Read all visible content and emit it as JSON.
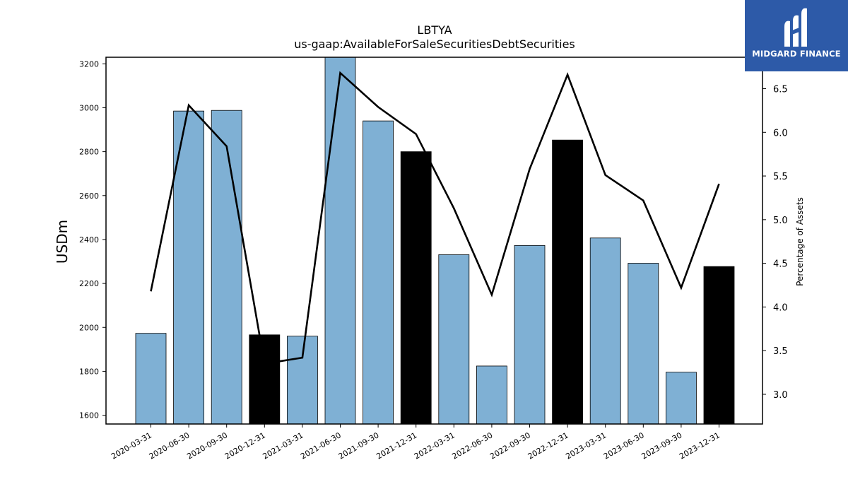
{
  "chart_data": {
    "type": "bar+line",
    "title": "LBTYA",
    "subtitle": "us-gaap:AvailableForSaleSecuritiesDebtSecurities",
    "ylabel": "USDm",
    "ylabel_right": "Percentage of Assets",
    "categories": [
      "2020-03-31",
      "2020-06-30",
      "2020-09-30",
      "2020-12-31",
      "2021-03-31",
      "2021-06-30",
      "2021-09-30",
      "2021-12-31",
      "2022-03-31",
      "2022-06-30",
      "2022-09-30",
      "2022-12-31",
      "2023-03-31",
      "2023-06-30",
      "2023-09-30",
      "2023-12-31"
    ],
    "series": [
      {
        "type": "bar",
        "axis": "left",
        "values": [
          1973,
          2985,
          2988,
          1966,
          1960,
          3230,
          2940,
          2800,
          2331,
          1824,
          2373,
          2853,
          2407,
          2292,
          1796,
          2277
        ],
        "colors": [
          "#7fb0d4",
          "#7fb0d4",
          "#7fb0d4",
          "#000000",
          "#7fb0d4",
          "#7fb0d4",
          "#7fb0d4",
          "#000000",
          "#7fb0d4",
          "#7fb0d4",
          "#7fb0d4",
          "#000000",
          "#7fb0d4",
          "#7fb0d4",
          "#7fb0d4",
          "#000000"
        ]
      },
      {
        "type": "line",
        "axis": "right",
        "color": "#000000",
        "values": [
          4.18,
          6.31,
          5.84,
          3.35,
          3.42,
          6.68,
          6.29,
          5.98,
          5.13,
          4.14,
          5.58,
          6.66,
          5.51,
          5.22,
          4.22,
          5.41
        ]
      }
    ],
    "ylim": [
      1560,
      3230
    ],
    "yticks": [
      1600,
      1800,
      2000,
      2200,
      2400,
      2600,
      2800,
      3000,
      3200
    ],
    "ylim_right": [
      2.66,
      6.86
    ],
    "yticks_right": [
      "3.0",
      "3.5",
      "4.0",
      "4.5",
      "5.0",
      "5.5",
      "6.0",
      "6.5"
    ],
    "grid": false
  },
  "logo": {
    "text": "MIDGARD FINANCE",
    "icon": "midgard-logo-icon",
    "background": "#2d5aa8"
  }
}
